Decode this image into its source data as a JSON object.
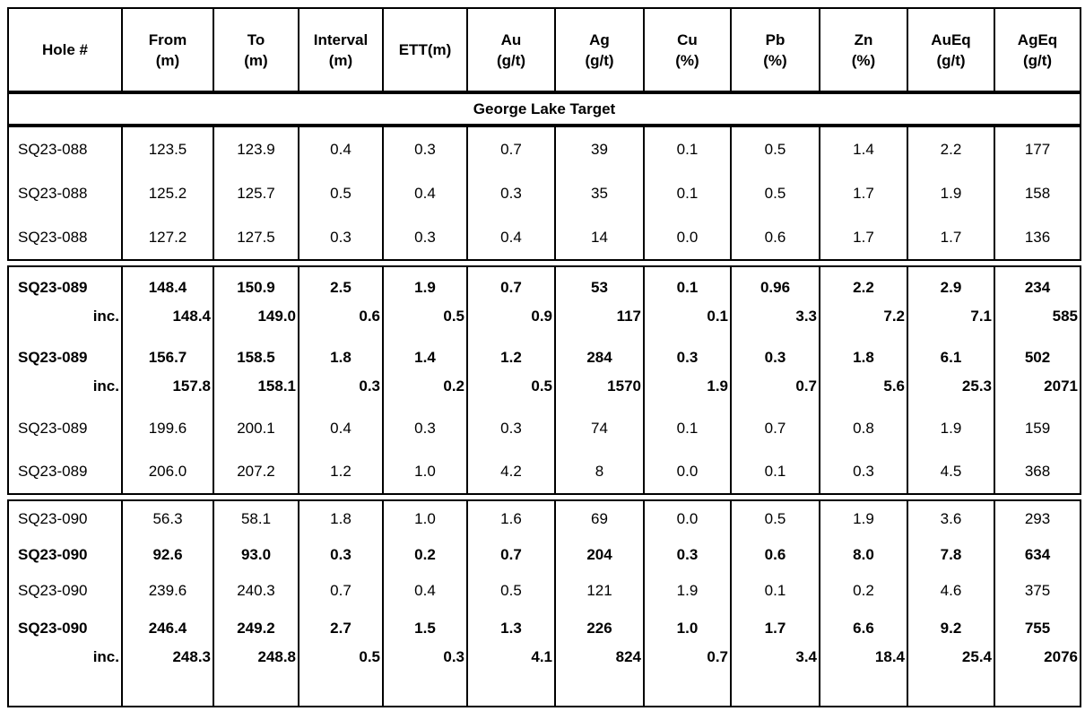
{
  "colors": {
    "background": "#ffffff",
    "text": "#000000",
    "border": "#000000"
  },
  "chart_data": {
    "type": "table",
    "section_title": "George Lake Target",
    "columns": [
      {
        "id": "hole",
        "line1": "Hole #",
        "line2": ""
      },
      {
        "id": "from",
        "line1": "From",
        "line2": "(m)"
      },
      {
        "id": "to",
        "line1": "To",
        "line2": "(m)"
      },
      {
        "id": "interval",
        "line1": "Interval",
        "line2": "(m)"
      },
      {
        "id": "ett",
        "line1": "ETT(m)",
        "line2": ""
      },
      {
        "id": "au",
        "line1": "Au",
        "line2": "(g/t)"
      },
      {
        "id": "ag",
        "line1": "Ag",
        "line2": "(g/t)"
      },
      {
        "id": "cu",
        "line1": "Cu",
        "line2": "(%)"
      },
      {
        "id": "pb",
        "line1": "Pb",
        "line2": "(%)"
      },
      {
        "id": "zn",
        "line1": "Zn",
        "line2": "(%)"
      },
      {
        "id": "aueq",
        "line1": "AuEq",
        "line2": "(g/t)"
      },
      {
        "id": "ageq",
        "line1": "AgEq",
        "line2": "(g/t)"
      }
    ],
    "groups": [
      {
        "rows": [
          {
            "style": "normal",
            "bold": false,
            "cells": [
              "SQ23-088",
              "123.5",
              "123.9",
              "0.4",
              "0.3",
              "0.7",
              "39",
              "0.1",
              "0.5",
              "1.4",
              "2.2",
              "177"
            ]
          },
          {
            "style": "normal",
            "bold": false,
            "cells": [
              "SQ23-088",
              "125.2",
              "125.7",
              "0.5",
              "0.4",
              "0.3",
              "35",
              "0.1",
              "0.5",
              "1.7",
              "1.9",
              "158"
            ]
          },
          {
            "style": "normal",
            "bold": false,
            "cells": [
              "SQ23-088",
              "127.2",
              "127.5",
              "0.3",
              "0.3",
              "0.4",
              "14",
              "0.0",
              "0.6",
              "1.7",
              "1.7",
              "136"
            ]
          }
        ]
      },
      {
        "rows": [
          {
            "style": "pair",
            "main": [
              "SQ23-089",
              "148.4",
              "150.9",
              "2.5",
              "1.9",
              "0.7",
              "53",
              "0.1",
              "0.96",
              "2.2",
              "2.9",
              "234"
            ],
            "inc": [
              "inc.",
              "148.4",
              "149.0",
              "0.6",
              "0.5",
              "0.9",
              "117",
              "0.1",
              "3.3",
              "7.2",
              "7.1",
              "585"
            ]
          },
          {
            "style": "pair",
            "main": [
              "SQ23-089",
              "156.7",
              "158.5",
              "1.8",
              "1.4",
              "1.2",
              "284",
              "0.3",
              "0.3",
              "1.8",
              "6.1",
              "502"
            ],
            "inc": [
              "inc.",
              "157.8",
              "158.1",
              "0.3",
              "0.2",
              "0.5",
              "1570",
              "1.9",
              "0.7",
              "5.6",
              "25.3",
              "2071"
            ]
          },
          {
            "style": "normal",
            "bold": false,
            "cells": [
              "SQ23-089",
              "199.6",
              "200.1",
              "0.4",
              "0.3",
              "0.3",
              "74",
              "0.1",
              "0.7",
              "0.8",
              "1.9",
              "159"
            ]
          },
          {
            "style": "normal",
            "bold": false,
            "cells": [
              "SQ23-089",
              "206.0",
              "207.2",
              "1.2",
              "1.0",
              "4.2",
              "8",
              "0.0",
              "0.1",
              "0.3",
              "4.5",
              "368"
            ]
          }
        ]
      },
      {
        "rows": [
          {
            "style": "normal",
            "bold": false,
            "cells": [
              "SQ23-090",
              "56.3",
              "58.1",
              "1.8",
              "1.0",
              "1.6",
              "69",
              "0.0",
              "0.5",
              "1.9",
              "3.6",
              "293"
            ]
          },
          {
            "style": "normal",
            "bold": true,
            "cells": [
              "SQ23-090",
              "92.6",
              "93.0",
              "0.3",
              "0.2",
              "0.7",
              "204",
              "0.3",
              "0.6",
              "8.0",
              "7.8",
              "634"
            ]
          },
          {
            "style": "normal",
            "bold": false,
            "cells": [
              "SQ23-090",
              "239.6",
              "240.3",
              "0.7",
              "0.4",
              "0.5",
              "121",
              "1.9",
              "0.1",
              "0.2",
              "4.6",
              "375"
            ]
          },
          {
            "style": "pair",
            "main": [
              "SQ23-090",
              "246.4",
              "249.2",
              "2.7",
              "1.5",
              "1.3",
              "226",
              "1.0",
              "1.7",
              "6.6",
              "9.2",
              "755"
            ],
            "inc": [
              "inc.",
              "248.3",
              "248.8",
              "0.5",
              "0.3",
              "4.1",
              "824",
              "0.7",
              "3.4",
              "18.4",
              "25.4",
              "2076"
            ]
          }
        ]
      }
    ]
  }
}
